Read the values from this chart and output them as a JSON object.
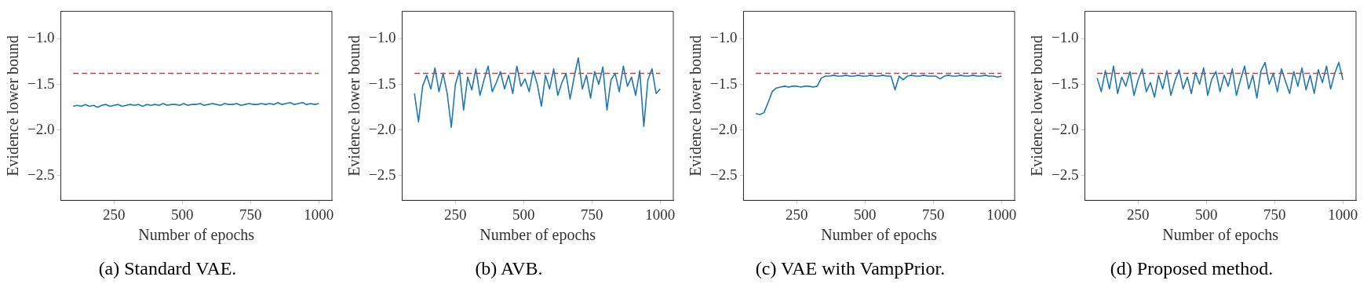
{
  "chart_data": [
    {
      "type": "line",
      "title": "(a) Standard VAE.",
      "xlabel": "Number of epochs",
      "ylabel": "Evidence lower bound",
      "xlim": [
        55,
        1048
      ],
      "ylim": [
        -2.77,
        -0.7
      ],
      "xticks": [
        250,
        500,
        750,
        1000
      ],
      "yticks": [
        {
          "value": -1.0,
          "label": "−1.0"
        },
        {
          "value": -1.5,
          "label": "−1.5"
        },
        {
          "value": -2.0,
          "label": "−2.0"
        },
        {
          "value": -2.5,
          "label": "−2.5"
        }
      ],
      "x": [
        100,
        115,
        130,
        145,
        160,
        175,
        190,
        205,
        220,
        235,
        250,
        265,
        280,
        295,
        310,
        325,
        340,
        355,
        370,
        385,
        400,
        415,
        430,
        445,
        460,
        475,
        490,
        505,
        520,
        535,
        550,
        565,
        580,
        595,
        610,
        625,
        640,
        655,
        670,
        685,
        700,
        715,
        730,
        745,
        760,
        775,
        790,
        805,
        820,
        835,
        850,
        865,
        880,
        895,
        910,
        925,
        940,
        955,
        970,
        985,
        1000
      ],
      "series": [
        {
          "color": "#1f77b4",
          "values": [
            -1.74,
            -1.73,
            -1.74,
            -1.72,
            -1.74,
            -1.73,
            -1.75,
            -1.73,
            -1.72,
            -1.74,
            -1.73,
            -1.72,
            -1.74,
            -1.73,
            -1.72,
            -1.73,
            -1.72,
            -1.74,
            -1.72,
            -1.73,
            -1.72,
            -1.73,
            -1.71,
            -1.73,
            -1.72,
            -1.72,
            -1.73,
            -1.71,
            -1.73,
            -1.72,
            -1.72,
            -1.71,
            -1.73,
            -1.72,
            -1.71,
            -1.72,
            -1.73,
            -1.71,
            -1.72,
            -1.72,
            -1.71,
            -1.73,
            -1.72,
            -1.71,
            -1.72,
            -1.72,
            -1.71,
            -1.72,
            -1.71,
            -1.72,
            -1.7,
            -1.72,
            -1.71,
            -1.7,
            -1.72,
            -1.71,
            -1.7,
            -1.72,
            -1.71,
            -1.72,
            -1.71
          ]
        }
      ],
      "ref_lines": [
        {
          "axis": "y",
          "value": -1.38,
          "color": "#e8302f",
          "line_style": "dashed"
        }
      ]
    },
    {
      "type": "line",
      "title": "(b) AVB.",
      "xlabel": "Number of epochs",
      "ylabel": "Evidence lower bound",
      "xlim": [
        55,
        1048
      ],
      "ylim": [
        -2.77,
        -0.7
      ],
      "xticks": [
        250,
        500,
        750,
        1000
      ],
      "yticks": [
        {
          "value": -1.0,
          "label": "−1.0"
        },
        {
          "value": -1.5,
          "label": "−1.5"
        },
        {
          "value": -2.0,
          "label": "−2.0"
        },
        {
          "value": -2.5,
          "label": "−2.5"
        }
      ],
      "x": [
        100,
        115,
        130,
        145,
        160,
        175,
        190,
        205,
        220,
        235,
        250,
        265,
        280,
        295,
        310,
        325,
        340,
        355,
        370,
        385,
        400,
        415,
        430,
        445,
        460,
        475,
        490,
        505,
        520,
        535,
        550,
        565,
        580,
        595,
        610,
        625,
        640,
        655,
        670,
        685,
        700,
        715,
        730,
        745,
        760,
        775,
        790,
        805,
        820,
        835,
        850,
        865,
        880,
        895,
        910,
        925,
        940,
        955,
        970,
        985,
        1000
      ],
      "series": [
        {
          "color": "#1f77b4",
          "values": [
            -1.6,
            -1.91,
            -1.52,
            -1.4,
            -1.55,
            -1.32,
            -1.58,
            -1.38,
            -1.6,
            -1.97,
            -1.5,
            -1.35,
            -1.78,
            -1.42,
            -1.56,
            -1.33,
            -1.62,
            -1.45,
            -1.3,
            -1.58,
            -1.48,
            -1.36,
            -1.55,
            -1.4,
            -1.6,
            -1.3,
            -1.52,
            -1.44,
            -1.58,
            -1.35,
            -1.5,
            -1.74,
            -1.4,
            -1.55,
            -1.33,
            -1.62,
            -1.48,
            -1.38,
            -1.66,
            -1.42,
            -1.21,
            -1.55,
            -1.4,
            -1.65,
            -1.36,
            -1.5,
            -1.31,
            -1.78,
            -1.45,
            -1.38,
            -1.58,
            -1.3,
            -1.52,
            -1.42,
            -1.62,
            -1.35,
            -1.96,
            -1.45,
            -1.33,
            -1.6,
            -1.55
          ]
        }
      ],
      "ref_lines": [
        {
          "axis": "y",
          "value": -1.38,
          "color": "#e8302f",
          "line_style": "dashed"
        }
      ]
    },
    {
      "type": "line",
      "title": "(c) VAE with VampPrior.",
      "xlabel": "Number of epochs",
      "ylabel": "Evidence lower bound",
      "xlim": [
        55,
        1048
      ],
      "ylim": [
        -2.77,
        -0.7
      ],
      "xticks": [
        250,
        500,
        750,
        1000
      ],
      "yticks": [
        {
          "value": -1.0,
          "label": "−1.0"
        },
        {
          "value": -1.5,
          "label": "−1.5"
        },
        {
          "value": -2.0,
          "label": "−2.0"
        },
        {
          "value": -2.5,
          "label": "−2.5"
        }
      ],
      "x": [
        100,
        115,
        130,
        145,
        160,
        175,
        190,
        205,
        220,
        235,
        250,
        265,
        280,
        295,
        310,
        325,
        340,
        355,
        370,
        385,
        400,
        415,
        430,
        445,
        460,
        475,
        490,
        505,
        520,
        535,
        550,
        565,
        580,
        595,
        610,
        625,
        640,
        655,
        670,
        685,
        700,
        715,
        730,
        745,
        760,
        775,
        790,
        805,
        820,
        835,
        850,
        865,
        880,
        895,
        910,
        925,
        940,
        955,
        970,
        985,
        1000
      ],
      "series": [
        {
          "color": "#1f77b4",
          "values": [
            -1.82,
            -1.83,
            -1.81,
            -1.7,
            -1.58,
            -1.54,
            -1.53,
            -1.52,
            -1.53,
            -1.52,
            -1.52,
            -1.53,
            -1.52,
            -1.52,
            -1.53,
            -1.52,
            -1.43,
            -1.41,
            -1.41,
            -1.4,
            -1.41,
            -1.41,
            -1.4,
            -1.41,
            -1.41,
            -1.4,
            -1.41,
            -1.41,
            -1.4,
            -1.41,
            -1.41,
            -1.4,
            -1.41,
            -1.41,
            -1.56,
            -1.41,
            -1.45,
            -1.41,
            -1.4,
            -1.41,
            -1.41,
            -1.4,
            -1.41,
            -1.41,
            -1.41,
            -1.44,
            -1.41,
            -1.4,
            -1.41,
            -1.41,
            -1.4,
            -1.41,
            -1.41,
            -1.4,
            -1.41,
            -1.41,
            -1.4,
            -1.41,
            -1.41,
            -1.42,
            -1.41
          ]
        }
      ],
      "ref_lines": [
        {
          "axis": "y",
          "value": -1.38,
          "color": "#e8302f",
          "line_style": "dashed"
        }
      ]
    },
    {
      "type": "line",
      "title": "(d) Proposed method.",
      "xlabel": "Number of epochs",
      "ylabel": "Evidence lower bound",
      "xlim": [
        55,
        1048
      ],
      "ylim": [
        -2.77,
        -0.7
      ],
      "xticks": [
        250,
        500,
        750,
        1000
      ],
      "yticks": [
        {
          "value": -1.0,
          "label": "−1.0"
        },
        {
          "value": -1.5,
          "label": "−1.5"
        },
        {
          "value": -2.0,
          "label": "−2.0"
        },
        {
          "value": -2.5,
          "label": "−2.5"
        }
      ],
      "x": [
        100,
        115,
        130,
        145,
        160,
        175,
        190,
        205,
        220,
        235,
        250,
        265,
        280,
        295,
        310,
        325,
        340,
        355,
        370,
        385,
        400,
        415,
        430,
        445,
        460,
        475,
        490,
        505,
        520,
        535,
        550,
        565,
        580,
        595,
        610,
        625,
        640,
        655,
        670,
        685,
        700,
        715,
        730,
        745,
        760,
        775,
        790,
        805,
        820,
        835,
        850,
        865,
        880,
        895,
        910,
        925,
        940,
        955,
        970,
        985,
        1000
      ],
      "series": [
        {
          "color": "#1f77b4",
          "values": [
            -1.43,
            -1.58,
            -1.35,
            -1.55,
            -1.3,
            -1.6,
            -1.42,
            -1.52,
            -1.36,
            -1.62,
            -1.45,
            -1.33,
            -1.58,
            -1.48,
            -1.64,
            -1.4,
            -1.55,
            -1.35,
            -1.62,
            -1.46,
            -1.34,
            -1.55,
            -1.42,
            -1.6,
            -1.37,
            -1.5,
            -1.32,
            -1.62,
            -1.44,
            -1.36,
            -1.58,
            -1.4,
            -1.52,
            -1.33,
            -1.62,
            -1.45,
            -1.3,
            -1.55,
            -1.4,
            -1.65,
            -1.35,
            -1.26,
            -1.5,
            -1.38,
            -1.58,
            -1.33,
            -1.47,
            -1.6,
            -1.36,
            -1.52,
            -1.32,
            -1.56,
            -1.4,
            -1.6,
            -1.34,
            -1.48,
            -1.3,
            -1.55,
            -1.38,
            -1.26,
            -1.45
          ]
        }
      ],
      "ref_lines": [
        {
          "axis": "y",
          "value": -1.38,
          "color": "#e8302f",
          "line_style": "dashed"
        }
      ]
    }
  ]
}
